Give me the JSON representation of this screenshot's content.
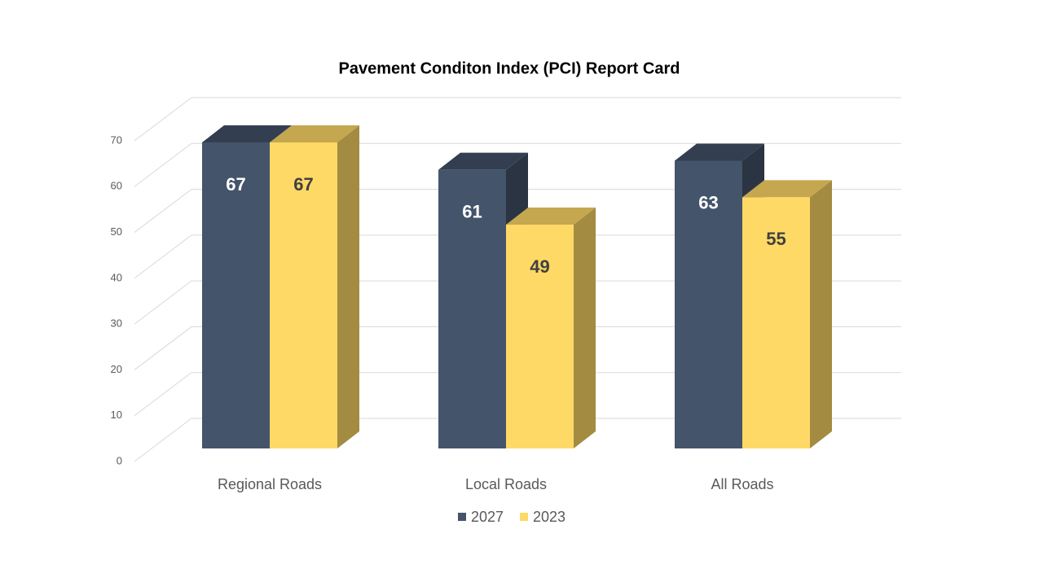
{
  "chart_data": {
    "type": "bar3d",
    "title": "Pavement Conditon Index (PCI) Report Card",
    "categories": [
      "Regional Roads",
      "Local Roads",
      "All Roads"
    ],
    "series": [
      {
        "name": "2027",
        "color": "#44546a",
        "label_color": "#ffffff",
        "values": [
          67,
          61,
          63
        ]
      },
      {
        "name": "2023",
        "color": "#ffd966",
        "label_color": "#404040",
        "values": [
          67,
          49,
          55
        ]
      }
    ],
    "ylim": [
      0,
      70
    ],
    "yticks": [
      0,
      10,
      20,
      30,
      40,
      50,
      60,
      70
    ],
    "grid": true,
    "legend": "bottom"
  }
}
